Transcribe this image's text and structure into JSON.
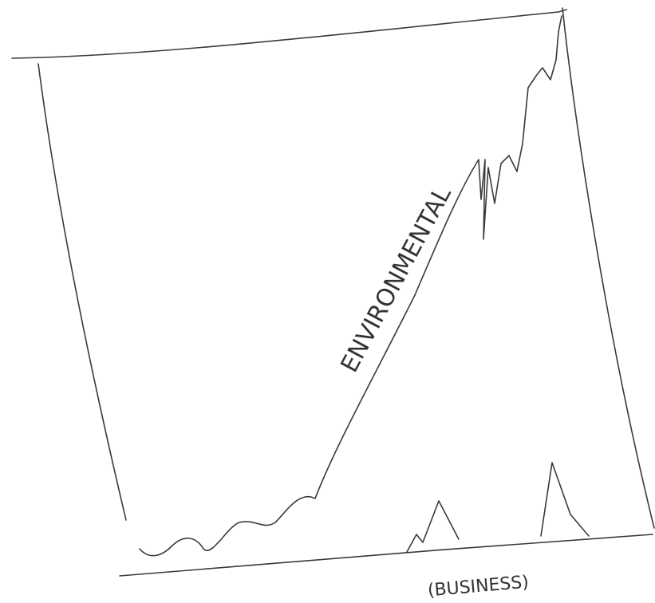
{
  "labels": {
    "curve": "ENVIRONMENTAL",
    "axis": "(BUSINESS)"
  }
}
